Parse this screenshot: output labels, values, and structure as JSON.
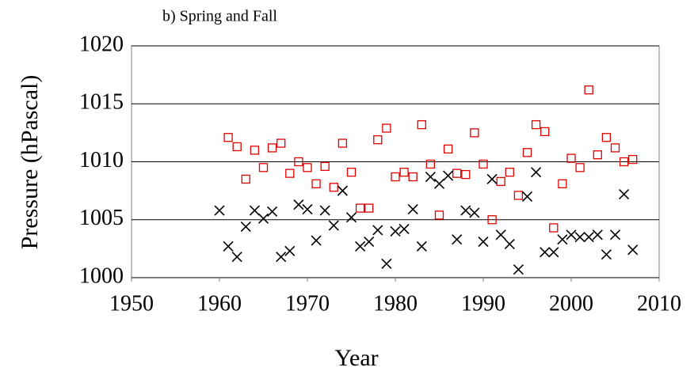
{
  "chart_data": {
    "type": "scatter",
    "title": "b) Spring and Fall",
    "x_label": "Year",
    "y_label": "Pressure (hPascal)",
    "xlim": [
      1950,
      2010
    ],
    "xticks": [
      1950,
      1960,
      1970,
      1980,
      1990,
      2000,
      2010
    ],
    "ylim": [
      1000,
      1020
    ],
    "yticks": [
      1000,
      1005,
      1010,
      1015,
      1020
    ],
    "grid": true,
    "series": [
      {
        "color": "#e00000",
        "marker": "square",
        "x": [
          1961,
          1962,
          1963,
          1964,
          1965,
          1966,
          1967,
          1968,
          1969,
          1970,
          1971,
          1972,
          1973,
          1974,
          1975,
          1976,
          1977,
          1978,
          1979,
          1980,
          1981,
          1982,
          1983,
          1984,
          1985,
          1986,
          1987,
          1988,
          1989,
          1990,
          1991,
          1992,
          1993,
          1994,
          1995,
          1996,
          1997,
          1998,
          1999,
          2000,
          2001,
          2002,
          2003,
          2004,
          2005,
          2006,
          2007
        ],
        "values": [
          1012.1,
          1011.3,
          1008.5,
          1011.0,
          1009.5,
          1011.2,
          1011.6,
          1009.0,
          1010.0,
          1009.5,
          1008.1,
          1009.6,
          1007.8,
          1011.6,
          1009.1,
          1006.0,
          1006.0,
          1011.9,
          1012.9,
          1008.7,
          1009.1,
          1008.7,
          1013.2,
          1009.8,
          1005.4,
          1011.1,
          1009.0,
          1008.9,
          1012.5,
          1009.8,
          1005.0,
          1008.3,
          1009.1,
          1007.1,
          1010.8,
          1013.2,
          1012.6,
          1004.3,
          1008.1,
          1010.3,
          1009.5,
          1016.2,
          1010.6,
          1012.1,
          1011.2,
          1010.0,
          1010.2
        ]
      },
      {
        "color": "#000000",
        "marker": "x",
        "x": [
          1960,
          1961,
          1962,
          1963,
          1964,
          1965,
          1966,
          1967,
          1968,
          1969,
          1970,
          1971,
          1972,
          1973,
          1974,
          1975,
          1976,
          1977,
          1978,
          1979,
          1980,
          1981,
          1982,
          1983,
          1984,
          1985,
          1986,
          1987,
          1988,
          1989,
          1990,
          1991,
          1992,
          1993,
          1994,
          1995,
          1996,
          1997,
          1998,
          1999,
          2000,
          2001,
          2002,
          2003,
          2004,
          2005,
          2006,
          2007
        ],
        "values": [
          1005.8,
          1002.7,
          1001.8,
          1004.4,
          1005.8,
          1005.1,
          1005.7,
          1001.8,
          1002.3,
          1006.3,
          1005.9,
          1003.2,
          1005.8,
          1004.5,
          1007.5,
          1005.2,
          1002.7,
          1003.1,
          1004.1,
          1001.2,
          1004.0,
          1004.2,
          1005.9,
          1002.7,
          1008.7,
          1008.1,
          1008.8,
          1003.3,
          1005.8,
          1005.6,
          1003.1,
          1008.5,
          1003.7,
          1002.9,
          1000.7,
          1007.0,
          1009.1,
          1002.2,
          1002.2,
          1003.3,
          1003.7,
          1003.5,
          1003.5,
          1003.7,
          1002.0,
          1003.7,
          1007.2,
          1002.4
        ]
      }
    ]
  }
}
